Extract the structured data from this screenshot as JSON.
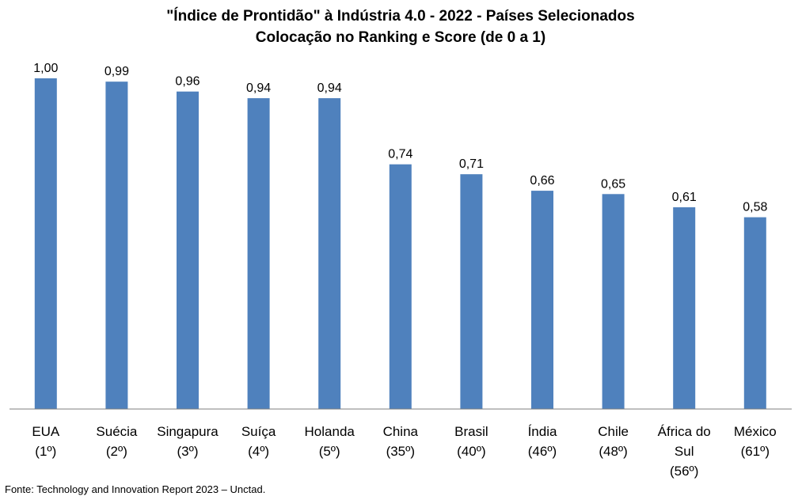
{
  "chart_data": {
    "type": "bar",
    "title": "\"Índice de Prontidão\" à Indústria 4.0 - 2022 - Países Selecionados",
    "subtitle": "Colocação no Ranking e Score (de 0 a 1)",
    "categories": [
      [
        "EUA",
        "(1º)"
      ],
      [
        "Suécia",
        "(2º)"
      ],
      [
        "Singapura",
        "(3º)"
      ],
      [
        "Suíça",
        "(4º)"
      ],
      [
        "Holanda",
        "(5º)"
      ],
      [
        "China",
        "(35º)"
      ],
      [
        "Brasil",
        "(40º)"
      ],
      [
        "Índia",
        "(46º)"
      ],
      [
        "Chile",
        "(48º)"
      ],
      [
        "África do",
        "Sul",
        "(56º)"
      ],
      [
        "México",
        "(61º)"
      ]
    ],
    "values": [
      1.0,
      0.99,
      0.96,
      0.94,
      0.94,
      0.74,
      0.71,
      0.66,
      0.65,
      0.61,
      0.58
    ],
    "value_labels": [
      "1,00",
      "0,99",
      "0,96",
      "0,94",
      "0,94",
      "0,74",
      "0,71",
      "0,66",
      "0,65",
      "0,61",
      "0,58"
    ],
    "ylim": [
      0,
      1
    ],
    "grid": false,
    "bar_color": "#4F81BD"
  },
  "source": "Fonte: Technology and Innovation Report 2023 – Unctad."
}
